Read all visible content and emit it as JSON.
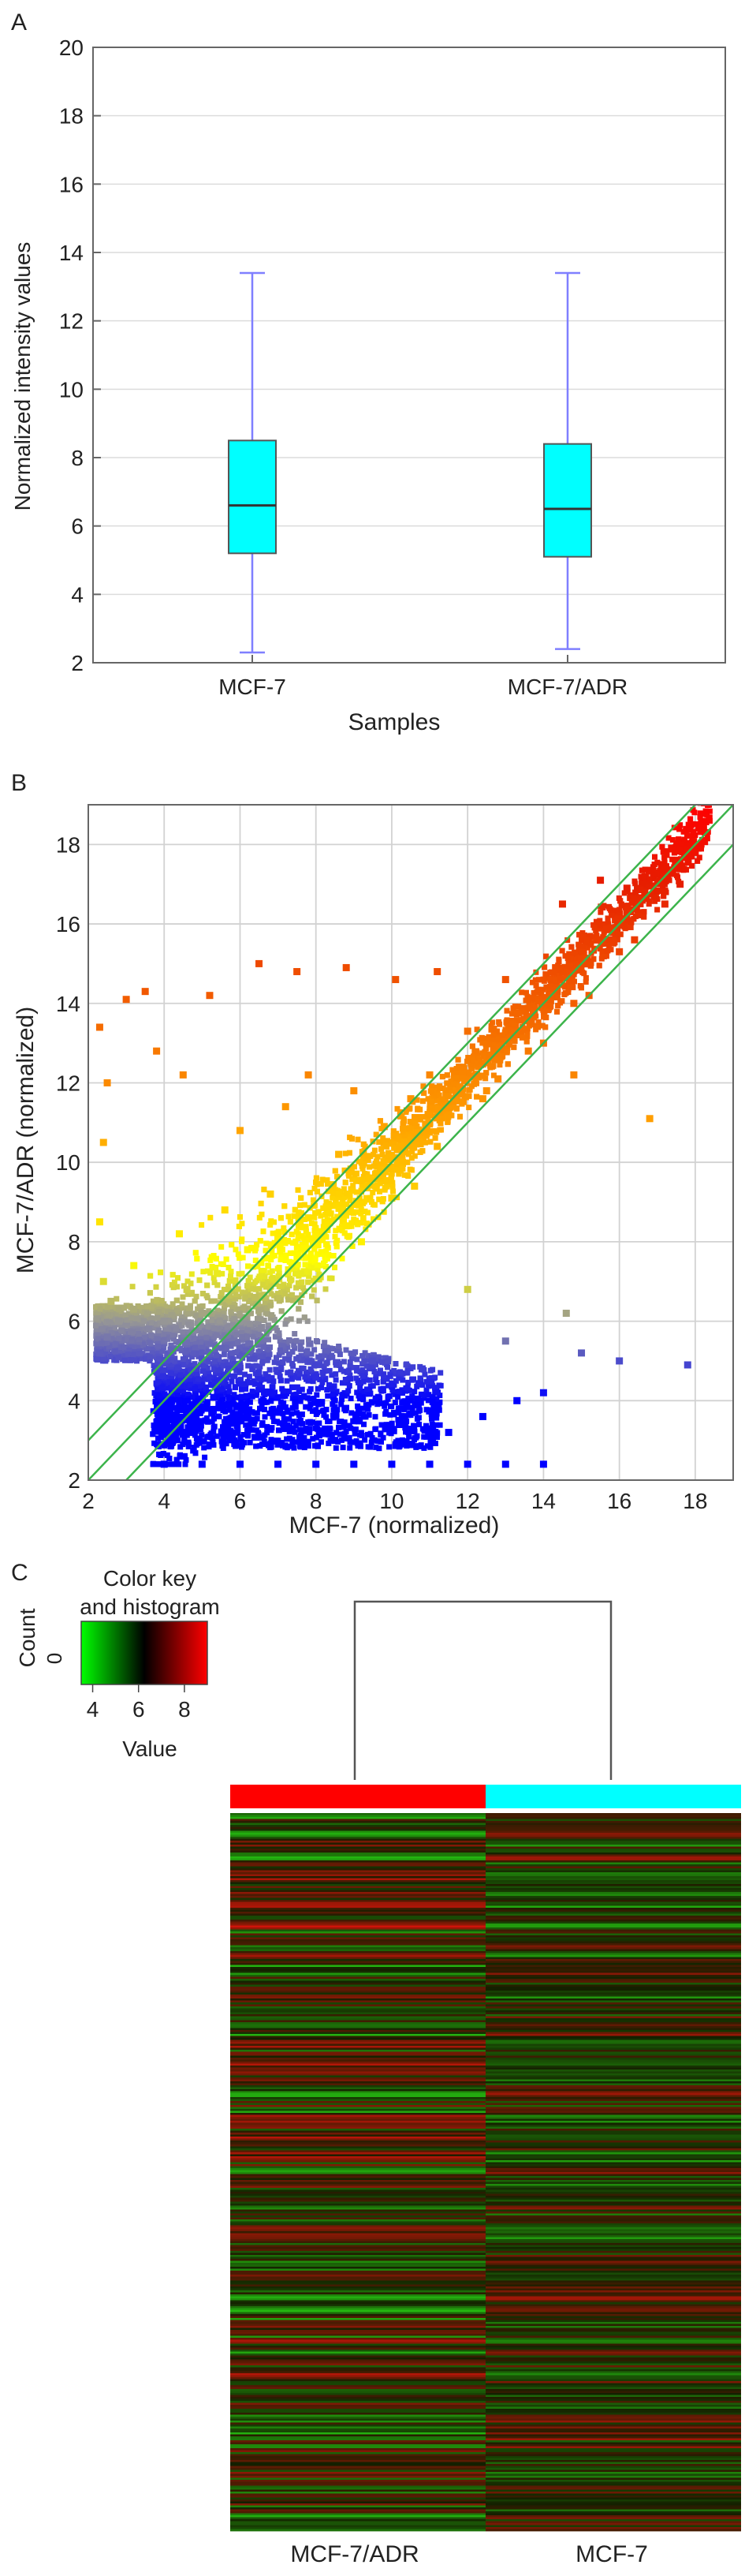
{
  "colors": {
    "box_fill": "#00ffff",
    "box_whisker": "#7f7fff",
    "identity_lines": "#3cb44b",
    "scatter_low": "#0000ff",
    "scatter_mid": "#ffff00",
    "scatter_high": "#ff0000",
    "heat_low": "#00ff00",
    "heat_mid": "#000000",
    "heat_high": "#ff0000",
    "group_adr": "#ff0000",
    "group_mcf7": "#00ffff"
  },
  "chart_data": [
    {
      "panel_label": "A",
      "type": "box",
      "xlabel": "Samples",
      "ylabel": "Normalized intensity values",
      "ylim": [
        2,
        20
      ],
      "yticks": [
        2,
        4,
        6,
        8,
        10,
        12,
        14,
        16,
        18,
        20
      ],
      "grid": "horizontal",
      "categories": [
        "MCF-7",
        "MCF-7/ADR"
      ],
      "boxes": [
        {
          "category": "MCF-7",
          "min": 2.3,
          "q1": 5.2,
          "median": 6.6,
          "q3": 8.5,
          "max": 13.4
        },
        {
          "category": "MCF-7/ADR",
          "min": 2.4,
          "q1": 5.1,
          "median": 6.5,
          "q3": 8.4,
          "max": 13.4
        }
      ]
    },
    {
      "panel_label": "B",
      "type": "scatter",
      "xlabel": "MCF-7 (normalized)",
      "ylabel": "MCF-7/ADR (normalized)",
      "xlim": [
        2,
        19
      ],
      "ylim": [
        2,
        19
      ],
      "xticks": [
        2,
        4,
        6,
        8,
        10,
        12,
        14,
        16,
        18
      ],
      "yticks": [
        2,
        4,
        6,
        8,
        10,
        12,
        14,
        16,
        18
      ],
      "grid": "both",
      "reference_lines": [
        {
          "slope": 1,
          "intercept": 1
        },
        {
          "slope": 1,
          "intercept": 0
        },
        {
          "slope": 1,
          "intercept": -1
        }
      ],
      "points": [
        [
          4.0,
          2.4
        ],
        [
          5.0,
          2.4
        ],
        [
          6.0,
          2.4
        ],
        [
          7.0,
          2.4
        ],
        [
          8.0,
          2.4
        ],
        [
          9.0,
          2.4
        ],
        [
          10.0,
          2.4
        ],
        [
          11.0,
          2.4
        ],
        [
          12.0,
          2.4
        ],
        [
          13.0,
          2.4
        ],
        [
          14.0,
          2.4
        ],
        [
          4.5,
          3.2
        ],
        [
          5.8,
          3.1
        ],
        [
          7.2,
          3.3
        ],
        [
          8.5,
          3.0
        ],
        [
          10.2,
          3.4
        ],
        [
          11.5,
          3.2
        ],
        [
          12.4,
          3.6
        ],
        [
          13.3,
          4.0
        ],
        [
          14.0,
          4.2
        ],
        [
          13.0,
          5.5
        ],
        [
          15.0,
          5.2
        ],
        [
          16.0,
          5.0
        ],
        [
          17.8,
          4.9
        ],
        [
          14.6,
          6.2
        ],
        [
          12.0,
          6.8
        ],
        [
          4.2,
          4.0
        ],
        [
          5.5,
          4.5
        ],
        [
          6.8,
          4.2
        ],
        [
          8.0,
          4.6
        ],
        [
          9.5,
          5.0
        ],
        [
          10.8,
          4.8
        ],
        [
          2.3,
          5.2
        ],
        [
          2.5,
          5.6
        ],
        [
          2.8,
          6.0
        ],
        [
          3.2,
          6.3
        ],
        [
          2.4,
          7.0
        ],
        [
          2.3,
          8.5
        ],
        [
          2.4,
          10.5
        ],
        [
          2.5,
          12.0
        ],
        [
          2.3,
          13.4
        ],
        [
          3.0,
          14.1
        ],
        [
          3.5,
          14.3
        ],
        [
          3.8,
          12.8
        ],
        [
          4.5,
          12.2
        ],
        [
          5.2,
          14.2
        ],
        [
          6.5,
          15.0
        ],
        [
          7.2,
          11.4
        ],
        [
          7.5,
          14.8
        ],
        [
          8.8,
          14.9
        ],
        [
          10.1,
          14.6
        ],
        [
          11.2,
          14.8
        ],
        [
          6.0,
          10.8
        ],
        [
          7.8,
          12.2
        ],
        [
          9.0,
          11.8
        ],
        [
          10.5,
          11.6
        ],
        [
          12.5,
          11.8
        ],
        [
          16.8,
          11.1
        ],
        [
          14.8,
          12.2
        ],
        [
          4.0,
          6.0
        ],
        [
          4.6,
          6.8
        ],
        [
          5.4,
          7.2
        ],
        [
          6.2,
          7.8
        ],
        [
          7.0,
          8.2
        ],
        [
          7.8,
          8.6
        ],
        [
          8.6,
          9.2
        ],
        [
          9.4,
          9.6
        ],
        [
          10.2,
          10.4
        ],
        [
          11.0,
          11.0
        ],
        [
          11.8,
          11.9
        ],
        [
          12.6,
          12.7
        ],
        [
          13.4,
          13.3
        ],
        [
          14.2,
          14.2
        ],
        [
          15.0,
          15.1
        ],
        [
          15.8,
          15.9
        ],
        [
          16.6,
          16.6
        ],
        [
          17.4,
          17.3
        ],
        [
          18.2,
          18.1
        ],
        [
          13.0,
          14.6
        ],
        [
          14.5,
          16.5
        ],
        [
          15.5,
          17.1
        ],
        [
          16.2,
          16.9
        ],
        [
          12.0,
          13.3
        ],
        [
          11.0,
          12.2
        ],
        [
          9.8,
          10.9
        ],
        [
          8.6,
          10.2
        ],
        [
          6.8,
          9.2
        ],
        [
          5.6,
          8.8
        ],
        [
          4.4,
          8.2
        ],
        [
          3.2,
          7.4
        ],
        [
          2.6,
          6.5
        ],
        [
          3.6,
          5.8
        ],
        [
          5.0,
          6.2
        ],
        [
          6.4,
          6.6
        ],
        [
          7.6,
          7.2
        ],
        [
          8.8,
          8.4
        ],
        [
          10.0,
          9.1
        ],
        [
          11.2,
          10.4
        ],
        [
          12.4,
          11.6
        ],
        [
          13.6,
          12.8
        ],
        [
          14.8,
          14.0
        ],
        [
          16.0,
          15.3
        ],
        [
          17.2,
          16.5
        ],
        [
          18.0,
          17.8
        ],
        [
          9.2,
          8.0
        ],
        [
          10.6,
          9.4
        ],
        [
          12.8,
          12.1
        ],
        [
          14.0,
          13.0
        ],
        [
          15.2,
          14.2
        ],
        [
          16.4,
          15.6
        ],
        [
          17.6,
          17.0
        ]
      ]
    },
    {
      "panel_label": "C",
      "type": "heatmap",
      "columns": [
        "MCF-7/ADR",
        "MCF-7"
      ],
      "dendrogram": "two samples joined at root",
      "color_key": {
        "title": "Color key and histogram",
        "xlabel": "Value",
        "ylabel": "Count",
        "ytick": "0",
        "range": [
          3.5,
          9
        ],
        "ticks": [
          4,
          6,
          8
        ]
      }
    }
  ]
}
